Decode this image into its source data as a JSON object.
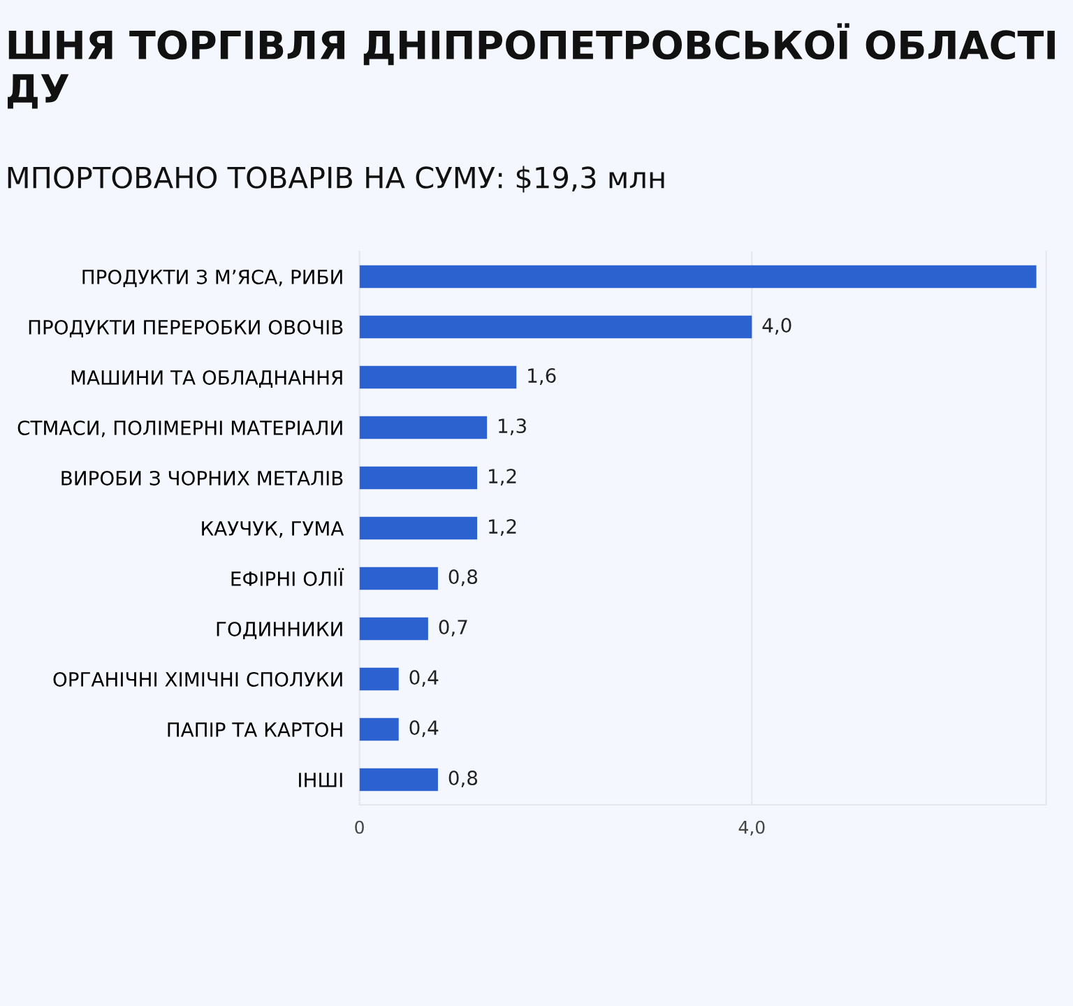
{
  "chart_data": {
    "type": "bar",
    "orientation": "horizontal",
    "title": "ШНЯ ТОРГІВЛЯ ДНІПРОПЕТРОВСЬКОЇ ОБЛАСТІ\nДУ",
    "subtitle": "МПОРТОВАНО ТОВАРІВ НА СУМУ: $19,3 млн",
    "categories": [
      "ПРОДУКТИ З М’ЯСА, РИБИ",
      "ПРОДУКТИ ПЕРЕРОБКИ ОВОЧІВ",
      "МАШИНИ ТА ОБЛАДНАННЯ",
      "СТМАСИ, ПОЛІМЕРНІ МАТЕРІАЛИ",
      "ВИРОБИ З ЧОРНИХ МЕТАЛІВ",
      "КАУЧУК, ГУМА",
      "ЕФІРНІ ОЛІЇ",
      "ГОДИННИКИ",
      "ОРГАНІЧНІ ХІМІЧНІ СПОЛУКИ",
      "ПАПІР ТА КАРТОН",
      "ІНШІ"
    ],
    "values": [
      6.9,
      4.0,
      1.6,
      1.3,
      1.2,
      1.2,
      0.8,
      0.7,
      0.4,
      0.4,
      0.8
    ],
    "value_labels": [
      null,
      "4,0",
      "1,6",
      "1,3",
      "1,2",
      "1,2",
      "0,8",
      "0,7",
      "0,4",
      "0,4",
      "0,8"
    ],
    "color": "#2c62cf",
    "xlim": [
      0,
      7
    ],
    "xticks": [
      0,
      {
        "value": 4,
        "label": "4,0"
      }
    ],
    "grid": "x",
    "legend": false
  }
}
